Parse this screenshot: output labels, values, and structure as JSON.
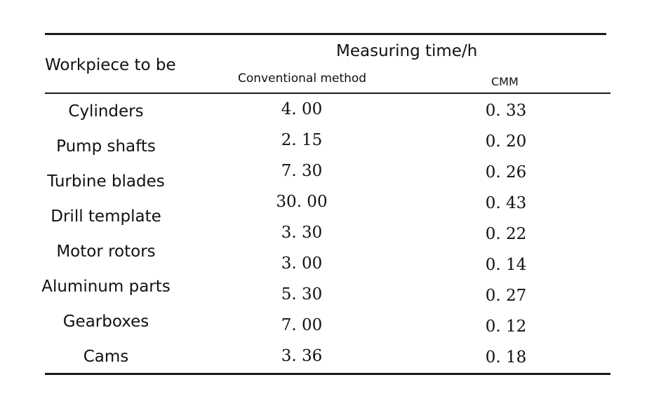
{
  "table": {
    "header": {
      "workpiece": "Workpiece to be",
      "measuring_time": "Measuring time/h",
      "conventional": "Conventional method",
      "cmm": "CMM"
    },
    "rows": [
      {
        "workpiece": "Cylinders",
        "conventional": "4. 00",
        "cmm": "0. 33"
      },
      {
        "workpiece": "Pump shafts",
        "conventional": "2. 15",
        "cmm": "0. 20"
      },
      {
        "workpiece": "Turbine blades",
        "conventional": "7. 30",
        "cmm": "0. 26"
      },
      {
        "workpiece": "Drill template",
        "conventional": "30. 00",
        "cmm": "0. 43"
      },
      {
        "workpiece": "Motor rotors",
        "conventional": "3. 30",
        "cmm": "0. 22"
      },
      {
        "workpiece": "Aluminum parts",
        "conventional": "3. 00",
        "cmm": "0. 14"
      },
      {
        "workpiece": "Gearboxes",
        "conventional": "5. 30",
        "cmm": "0. 27"
      },
      {
        "workpiece": "Cams",
        "conventional": "7. 00",
        "cmm": "0. 12"
      },
      {
        "workpiece": "",
        "conventional": "3. 36",
        "cmm": "0. 18"
      }
    ]
  }
}
